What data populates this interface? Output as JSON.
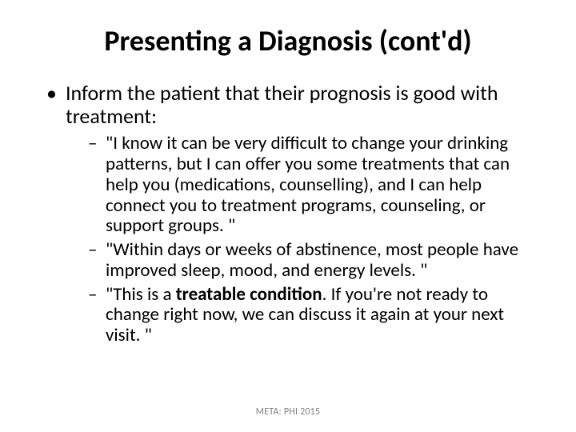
{
  "slide": {
    "background_color": "#ffffff",
    "text_color": "#000000",
    "title": "Presenting a Diagnosis (cont'd)",
    "title_fontsize": 36,
    "title_weight": 700,
    "body_fontsize_level1": 26,
    "body_fontsize_level2": 23,
    "bullets": {
      "level1": [
        {
          "text": "Inform the patient that their prognosis is good with treatment:",
          "sub": [
            {
              "pre": "\"I know it can be very difficult to change your drinking patterns, but I can offer you some treatments that can help you (medications, counselling), and I can help connect you to treatment programs, counseling, or support groups. \""
            },
            {
              "pre": "\"Within days or weeks of abstinence, most people have improved sleep, mood, and energy levels. \""
            },
            {
              "pre": "\"This is a ",
              "bold": "treatable condition",
              "post": ". If you're not ready to change right now, we can discuss it again at your next visit. \""
            }
          ]
        }
      ]
    },
    "footer": "META: PHI 2015",
    "footer_color": "#808080",
    "footer_fontsize": 12
  }
}
